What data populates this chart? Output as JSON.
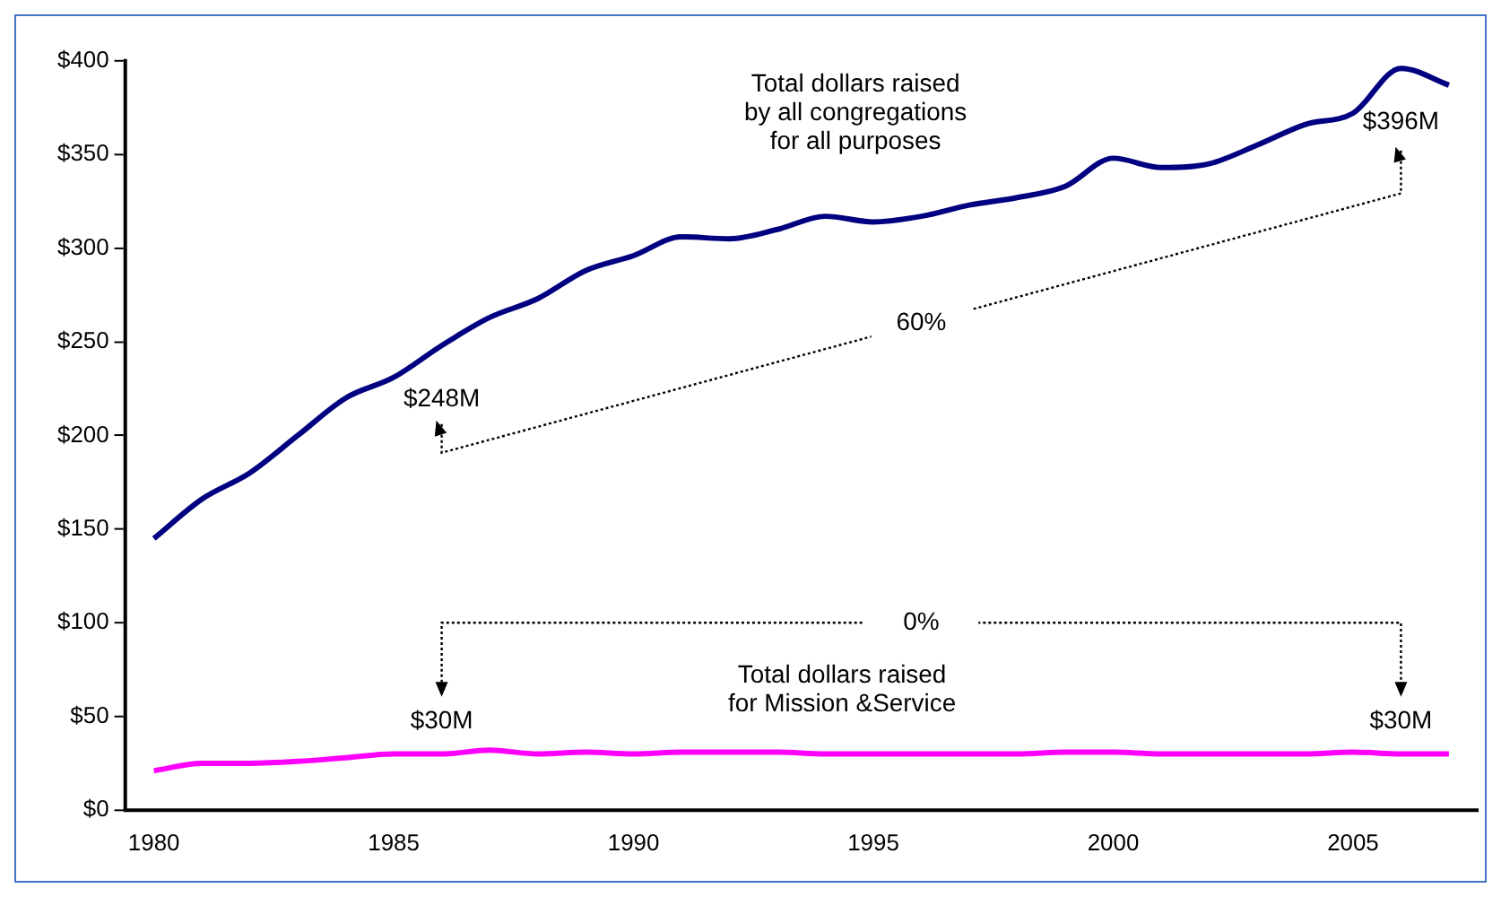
{
  "chart_data": {
    "type": "line",
    "x": [
      1980,
      1981,
      1982,
      1983,
      1984,
      1985,
      1986,
      1987,
      1988,
      1989,
      1990,
      1991,
      1992,
      1993,
      1994,
      1995,
      1996,
      1997,
      1998,
      1999,
      2000,
      2001,
      2002,
      2003,
      2004,
      2005,
      2006,
      2007
    ],
    "series": [
      {
        "color": "#000080",
        "values": [
          145,
          166,
          180,
          200,
          220,
          231,
          248,
          263,
          273,
          288,
          296,
          306,
          305,
          310,
          317,
          314,
          317,
          323,
          327,
          333,
          348,
          343,
          345,
          355,
          366,
          372,
          396,
          387
        ],
        "value_labels": [
          null,
          null,
          null,
          null,
          null,
          null,
          "$248M",
          null,
          null,
          null,
          null,
          null,
          null,
          null,
          null,
          null,
          null,
          null,
          null,
          null,
          null,
          null,
          null,
          null,
          null,
          null,
          "$396M",
          null
        ]
      },
      {
        "color": "#ff00ff",
        "values": [
          21,
          25,
          25,
          26,
          28,
          30,
          30,
          32,
          30,
          31,
          30,
          31,
          31,
          31,
          30,
          30,
          30,
          30,
          30,
          31,
          31,
          30,
          30,
          30,
          30,
          31,
          30,
          30
        ],
        "value_labels": [
          null,
          null,
          null,
          null,
          null,
          null,
          "$30M",
          null,
          null,
          null,
          null,
          null,
          null,
          null,
          null,
          null,
          null,
          null,
          null,
          null,
          null,
          null,
          null,
          null,
          null,
          null,
          "$30M",
          null
        ]
      }
    ],
    "xlim": [
      1979.4,
      2007.6
    ],
    "xticks": [
      1980,
      1985,
      1990,
      1995,
      2000,
      2005
    ],
    "ylim": [
      0,
      400
    ],
    "yticks": [
      {
        "value": 0,
        "label": "$0"
      },
      {
        "value": 50,
        "label": "$50"
      },
      {
        "value": 100,
        "label": "$100"
      },
      {
        "value": 150,
        "label": "$150"
      },
      {
        "value": 200,
        "label": "$200"
      },
      {
        "value": 250,
        "label": "$250"
      },
      {
        "value": 300,
        "label": "$300"
      },
      {
        "value": 350,
        "label": "$350"
      },
      {
        "value": 400,
        "label": "$400"
      }
    ],
    "grid": false,
    "legend": false,
    "marker": "none",
    "line_style": "solid",
    "annotations": [
      "Total dollars raised\nby all congregations\nfor all purposes",
      "Total dollars raised\nfor Mission &Service",
      "60%",
      "0%"
    ]
  }
}
